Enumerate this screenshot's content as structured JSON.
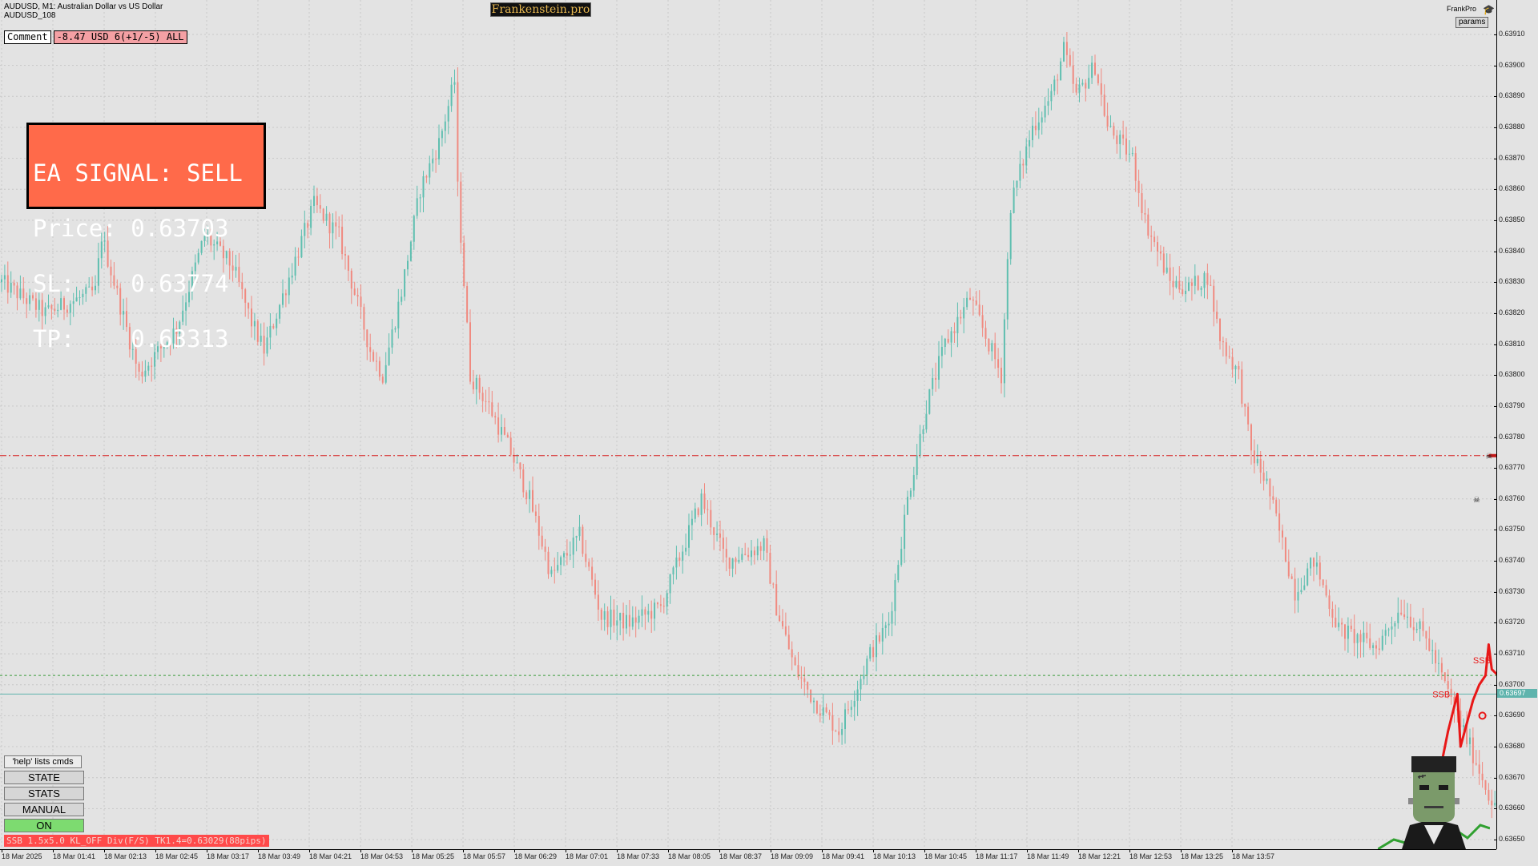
{
  "window": {
    "title_line1": "AUDUSD, M1:  Australian Dollar vs US Dollar",
    "title_line2": "AUDUSD_108",
    "logo": "Frankenstein.pro",
    "account_label": "FrankPro",
    "account_icon": "graduation-cap-icon",
    "params_label": "params"
  },
  "comment": {
    "button_label": "Comment",
    "value": "-8.47 USD 6(+1/-5) ALL"
  },
  "signal": {
    "line1": "EA SIGNAL: SELL",
    "line2": "Price: 0.63703",
    "line3": "SL:    0.63774",
    "line4": "TP:    0.63313"
  },
  "panel": {
    "help_text": "'help' lists cmds",
    "state_label": "STATE",
    "stats_label": "STATS",
    "manual_label": "MANUAL",
    "on_label": "ON",
    "status_bar": "SSB 1.5x5.0 KL_OFF Div(F/S) TK1.4=0.63029(88pips)"
  },
  "markers": {
    "ssb_label_1": "SSB",
    "ssb_label_2": "SSB"
  },
  "colors": {
    "bull": "#5fbfb0",
    "bear": "#f08a80",
    "sl_line": "#d62020",
    "entry_line": "#3a9a3a",
    "bid_line": "#5fb4ad",
    "signal_box": "#ff6a4a",
    "trade_path": "#e81818"
  },
  "chart_data": {
    "type": "candlestick",
    "symbol": "AUDUSD",
    "timeframe": "M1",
    "ylim": [
      0.63647,
      0.63915
    ],
    "current_price": 0.63697,
    "current_price_label": "0.63697",
    "horizontal_lines": {
      "stop_loss": 0.63774,
      "entry": 0.63703,
      "bid": 0.63697
    },
    "price_ticks": [
      "0.63910",
      "0.63900",
      "0.63890",
      "0.63880",
      "0.63870",
      "0.63860",
      "0.63850",
      "0.63840",
      "0.63830",
      "0.63820",
      "0.63810",
      "0.63800",
      "0.63790",
      "0.63780",
      "0.63770",
      "0.63760",
      "0.63750",
      "0.63740",
      "0.63730",
      "0.63720",
      "0.63710",
      "0.63700",
      "0.63690",
      "0.63680",
      "0.63670",
      "0.63660",
      "0.63650"
    ],
    "time_ticks": [
      "18 Mar 2025",
      "18 Mar 01:41",
      "18 Mar 02:13",
      "18 Mar 02:45",
      "18 Mar 03:17",
      "18 Mar 03:49",
      "18 Mar 04:21",
      "18 Mar 04:53",
      "18 Mar 05:25",
      "18 Mar 05:57",
      "18 Mar 06:29",
      "18 Mar 07:01",
      "18 Mar 07:33",
      "18 Mar 08:05",
      "18 Mar 08:37",
      "18 Mar 09:09",
      "18 Mar 09:41",
      "18 Mar 10:13",
      "18 Mar 10:45",
      "18 Mar 11:17",
      "18 Mar 11:49",
      "18 Mar 12:21",
      "18 Mar 12:53",
      "18 Mar 13:25",
      "18 Mar 13:57"
    ],
    "price_path": [
      [
        0,
        0.6383
      ],
      [
        14,
        0.6382
      ],
      [
        30,
        0.63827
      ],
      [
        32,
        0.63845
      ],
      [
        40,
        0.63815
      ],
      [
        44,
        0.638
      ],
      [
        56,
        0.63815
      ],
      [
        65,
        0.63845
      ],
      [
        74,
        0.63835
      ],
      [
        80,
        0.63817
      ],
      [
        84,
        0.63808
      ],
      [
        100,
        0.63855
      ],
      [
        108,
        0.63845
      ],
      [
        118,
        0.63808
      ],
      [
        122,
        0.638
      ],
      [
        128,
        0.63827
      ],
      [
        134,
        0.6386
      ],
      [
        140,
        0.63875
      ],
      [
        145,
        0.63895
      ],
      [
        146,
        0.6386
      ],
      [
        150,
        0.638
      ],
      [
        156,
        0.6379
      ],
      [
        163,
        0.63775
      ],
      [
        169,
        0.6376
      ],
      [
        176,
        0.63735
      ],
      [
        185,
        0.63748
      ],
      [
        192,
        0.63722
      ],
      [
        201,
        0.6372
      ],
      [
        211,
        0.63725
      ],
      [
        224,
        0.6376
      ],
      [
        232,
        0.6374
      ],
      [
        244,
        0.63745
      ],
      [
        248,
        0.63725
      ],
      [
        254,
        0.63705
      ],
      [
        260,
        0.63695
      ],
      [
        268,
        0.63685
      ],
      [
        278,
        0.6371
      ],
      [
        284,
        0.6372
      ],
      [
        290,
        0.6376
      ],
      [
        296,
        0.6379
      ],
      [
        302,
        0.6381
      ],
      [
        310,
        0.63825
      ],
      [
        316,
        0.6381
      ],
      [
        320,
        0.638
      ],
      [
        323,
        0.63855
      ],
      [
        330,
        0.6388
      ],
      [
        336,
        0.6389
      ],
      [
        340,
        0.63905
      ],
      [
        344,
        0.6389
      ],
      [
        350,
        0.639
      ],
      [
        354,
        0.6388
      ],
      [
        362,
        0.6387
      ],
      [
        366,
        0.6385
      ],
      [
        374,
        0.6383
      ],
      [
        380,
        0.63828
      ],
      [
        386,
        0.63832
      ],
      [
        390,
        0.63812
      ],
      [
        396,
        0.638
      ],
      [
        400,
        0.63775
      ],
      [
        405,
        0.63765
      ],
      [
        414,
        0.6373
      ],
      [
        420,
        0.6374
      ],
      [
        428,
        0.63718
      ],
      [
        440,
        0.63712
      ],
      [
        448,
        0.63725
      ],
      [
        456,
        0.63715
      ],
      [
        464,
        0.63695
      ],
      [
        470,
        0.6368
      ],
      [
        474,
        0.6367
      ],
      [
        478,
        0.6366
      ],
      [
        482,
        0.63657
      ]
    ],
    "trade_marks": [
      {
        "label": "SSB",
        "price": 0.63697
      },
      {
        "label": "SSB",
        "price": 0.63708
      }
    ],
    "trade_path": [
      [
        461,
        0.63675
      ],
      [
        463,
        0.63685
      ],
      [
        466,
        0.63697
      ],
      [
        467,
        0.6368
      ],
      [
        471,
        0.63695
      ],
      [
        473,
        0.637
      ],
      [
        475,
        0.63703
      ],
      [
        476,
        0.63713
      ],
      [
        477,
        0.63705
      ],
      [
        479,
        0.63703
      ],
      [
        480,
        0.63698
      ],
      [
        481,
        0.6369
      ],
      [
        482,
        0.6367
      ],
      [
        483,
        0.63647
      ]
    ],
    "sl_arrow_start": 476
  }
}
